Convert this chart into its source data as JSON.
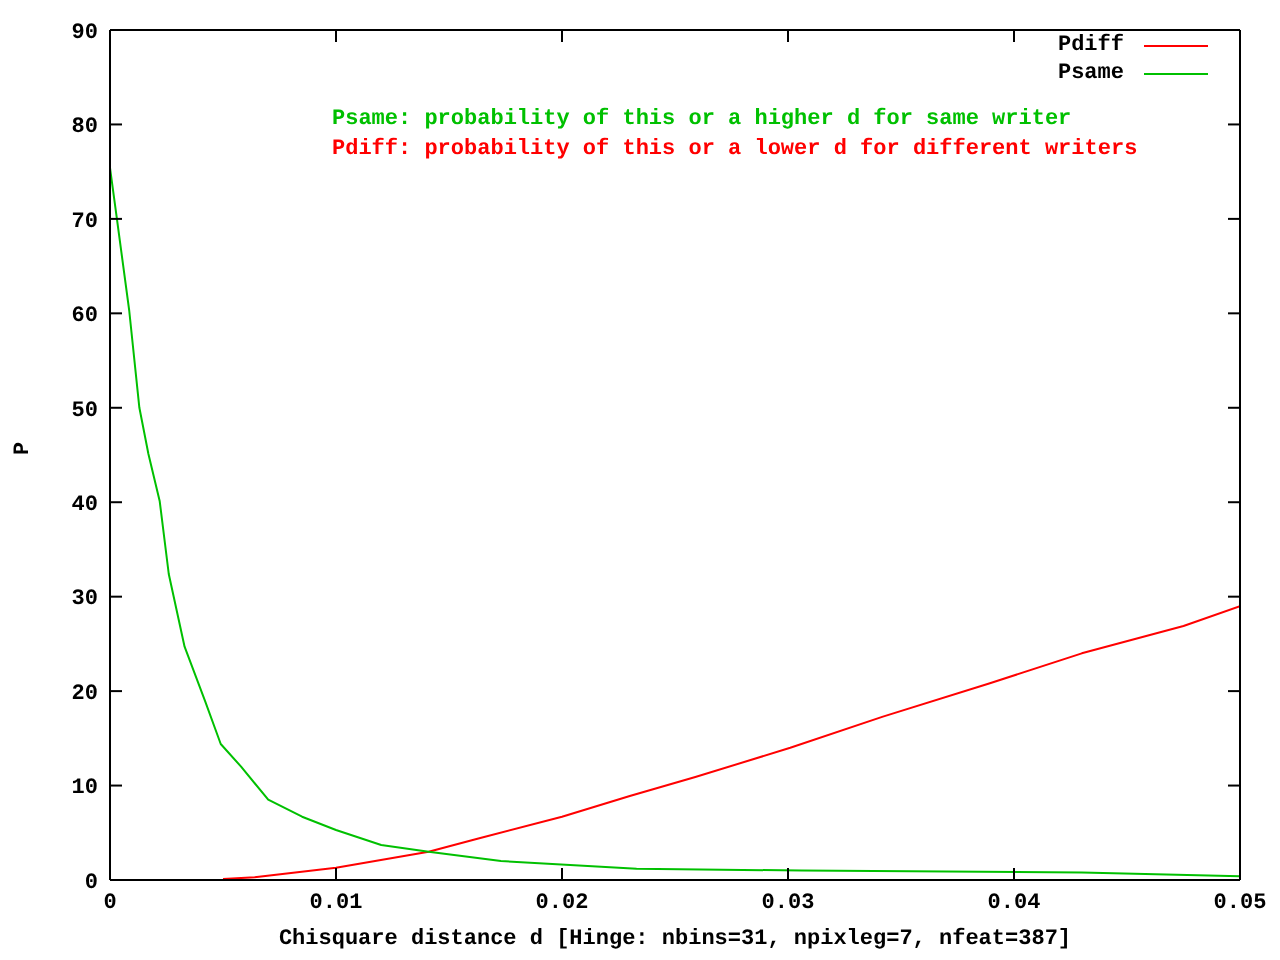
{
  "chart_data": {
    "type": "line",
    "xlabel": "Chisquare distance d [Hinge: nbins=31, npixleg=7, nfeat=387]",
    "ylabel": "P",
    "xlim": [
      0,
      0.05
    ],
    "xticks": [
      0,
      0.01,
      0.02,
      0.03,
      0.04,
      0.05
    ],
    "ylim": [
      0,
      90
    ],
    "yticks": [
      0,
      10,
      20,
      30,
      40,
      50,
      60,
      70,
      80,
      90
    ],
    "legend": "top right",
    "marker": "none",
    "annotations": [
      "Psame: probability of this or a higher d for same writer",
      "Pdiff: probability of this or a lower d for different writers"
    ],
    "series": [
      {
        "name": "Pdiff",
        "color": "#ff0000",
        "x": [
          0.005,
          0.0064,
          0.01,
          0.0141,
          0.0163,
          0.02,
          0.023,
          0.0259,
          0.0301,
          0.0342,
          0.0389,
          0.043,
          0.0475,
          0.05
        ],
        "values": [
          0.1,
          0.3,
          1.3,
          3.0,
          4.4,
          6.7,
          8.9,
          10.9,
          14.0,
          17.3,
          20.8,
          24.0,
          26.9,
          29.0
        ]
      },
      {
        "name": "Psame",
        "color": "#00c000",
        "x": [
          0,
          0.0003,
          0.00085,
          0.0013,
          0.0017,
          0.0022,
          0.0026,
          0.0033,
          0.0042,
          0.0049,
          0.0058,
          0.007,
          0.0085,
          0.01,
          0.012,
          0.0141,
          0.0173,
          0.0233,
          0.0306,
          0.043,
          0.05
        ],
        "values": [
          75.4,
          70.1,
          60.3,
          50.0,
          45.1,
          40.1,
          32.4,
          24.7,
          19.0,
          14.4,
          12.0,
          8.5,
          6.7,
          5.3,
          3.7,
          3.0,
          2.0,
          1.2,
          1.0,
          0.8,
          0.4
        ]
      }
    ]
  }
}
